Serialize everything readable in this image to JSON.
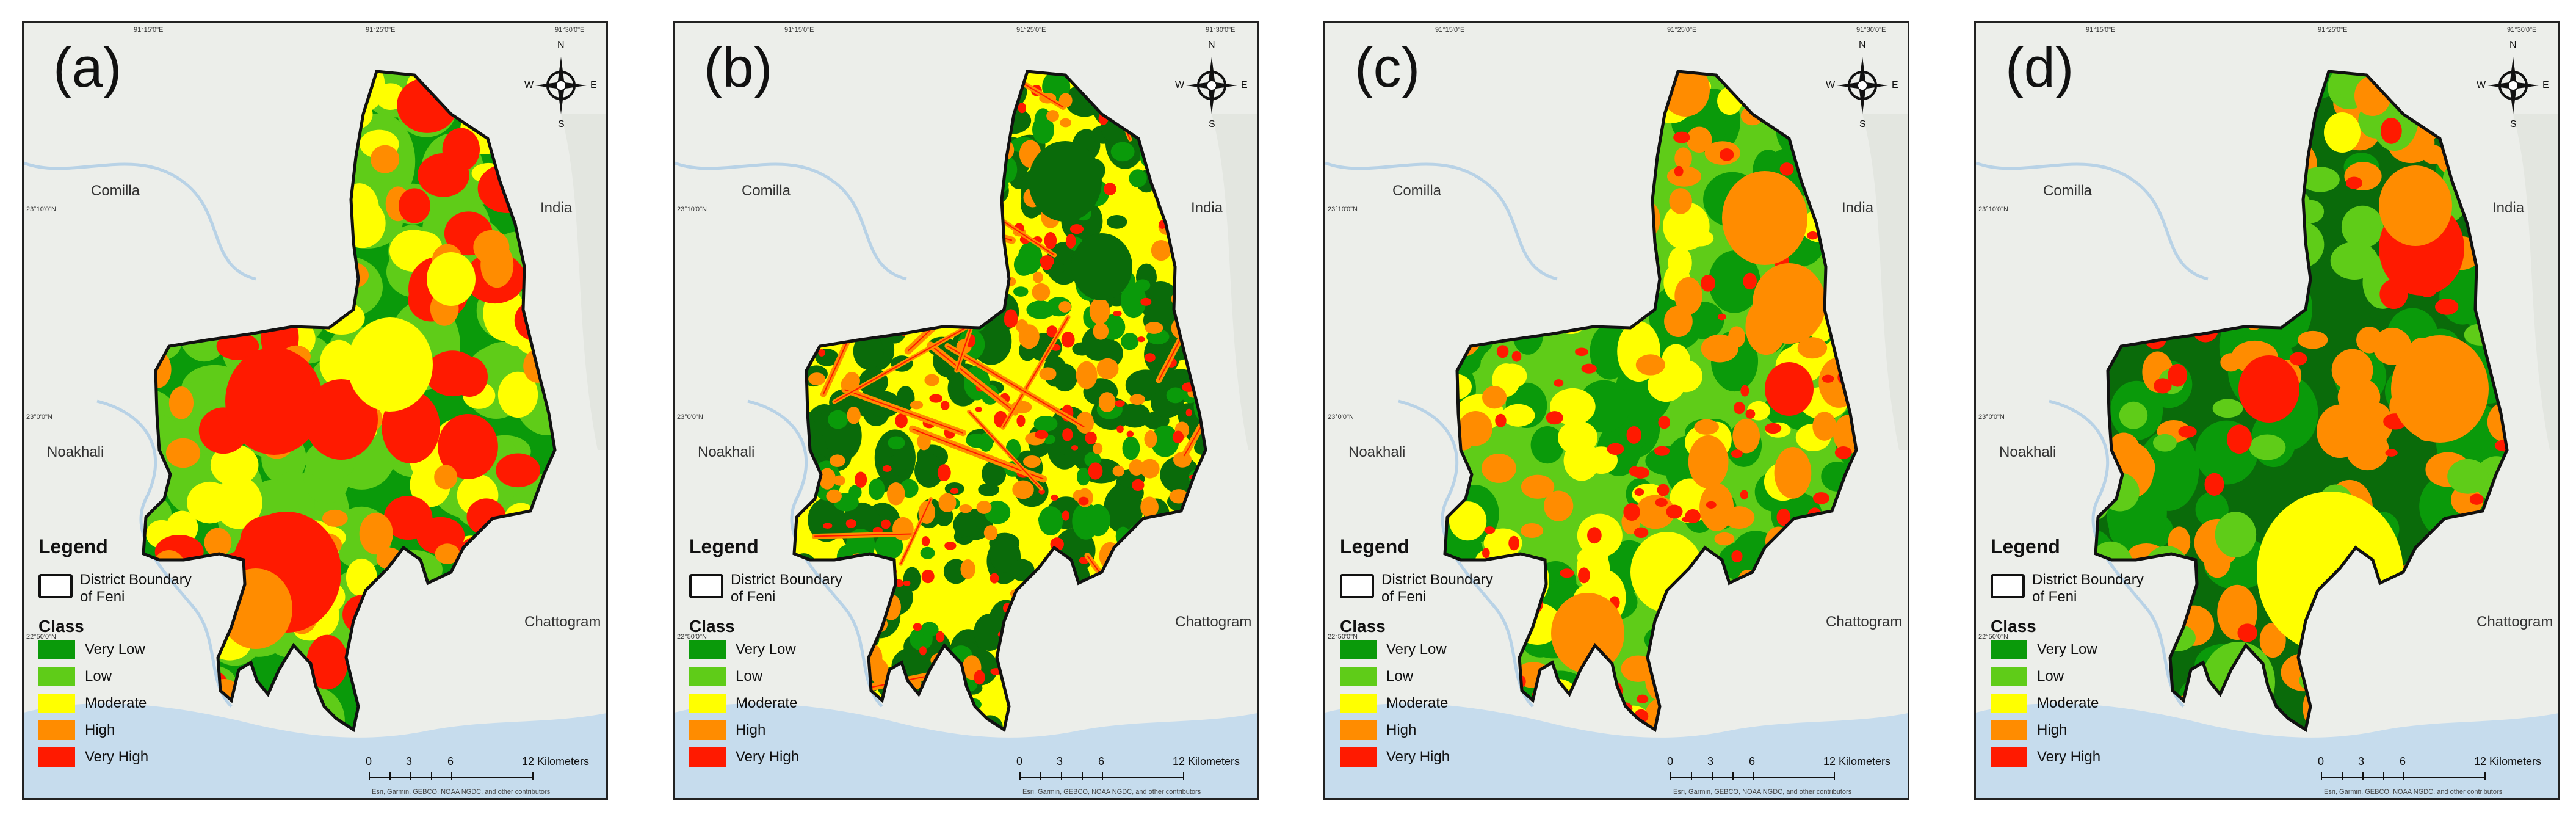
{
  "panels": [
    {
      "id": "a",
      "label": "(a)",
      "scheme": "a"
    },
    {
      "id": "b",
      "label": "(b)",
      "scheme": "b"
    },
    {
      "id": "c",
      "label": "(c)",
      "scheme": "c"
    },
    {
      "id": "d",
      "label": "(d)",
      "scheme": "d"
    }
  ],
  "places": {
    "comilla": "Comilla",
    "india": "India",
    "noakhali": "Noakhali",
    "chattogram": "Chattogram"
  },
  "compass": {
    "n": "N",
    "s": "S",
    "e": "E",
    "w": "W"
  },
  "legend": {
    "title": "Legend",
    "boundary_line1": "District Boundary",
    "boundary_line2": "of Feni",
    "class_title": "Class",
    "classes": [
      {
        "label": "Very Low",
        "color": "#0a9a0a"
      },
      {
        "label": "Low",
        "color": "#5fcc18"
      },
      {
        "label": "Moderate",
        "color": "#ffff00"
      },
      {
        "label": "High",
        "color": "#ff8c00"
      },
      {
        "label": "Very High",
        "color": "#ff1a00"
      }
    ]
  },
  "scalebar": {
    "t0": "0",
    "t1": "3",
    "t2": "6",
    "t3": "12 Kilometers"
  },
  "credit": "Esri, Garmin, GEBCO, NOAA NGDC, and other contributors",
  "ticks": {
    "top_left": "91°15'0\"E",
    "top_mid": "91°25'0\"E",
    "top_right": "91°30'0\"E",
    "left_top": "23°10'0\"N",
    "left_mid": "23°0'0\"N",
    "left_bot": "22°50'0\"N"
  },
  "colors": {
    "dark_green": "#0a6b0a",
    "very_low": "#0a9a0a",
    "low": "#5fcc18",
    "moderate": "#ffff00",
    "high": "#ff8c00",
    "very_high": "#ff1a00",
    "water": "#c6dced",
    "land": "#eceeea"
  }
}
